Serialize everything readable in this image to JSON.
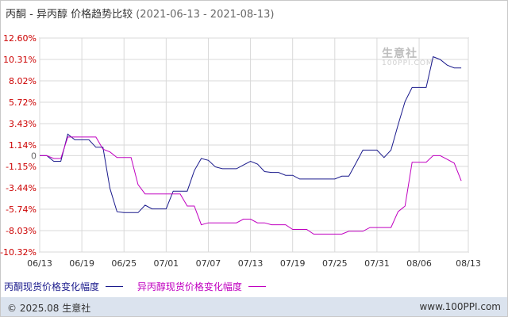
{
  "title": {
    "main": "丙酮 - 异丙醇 价格趋势比较",
    "range": "(2021-06-13 - 2021-08-13)"
  },
  "watermark": {
    "text": "生意社",
    "sub": "100PPI.COM"
  },
  "footer": {
    "left": "© 2025.08 生意社",
    "right": "www.100PPI.com"
  },
  "colors": {
    "series1": "#1a1a8c",
    "series2": "#c000c0",
    "grid": "#d9d9d9",
    "axis_label": "#cc0000"
  },
  "chart_data": {
    "type": "line",
    "xlabel": "",
    "ylabel": "",
    "ylim": [
      -10.32,
      12.6
    ],
    "yticks": [
      12.6,
      10.31,
      8.02,
      5.72,
      3.43,
      1.14,
      0,
      -1.15,
      -3.44,
      -5.74,
      -8.03,
      -10.32
    ],
    "ytick_labels": [
      "12.60%",
      "10.31%",
      "8.02%",
      "5.72%",
      "3.43%",
      "1.14%",
      "0",
      "-1.15%",
      "-3.44%",
      "-5.74%",
      "-8.03%",
      "-10.32%"
    ],
    "xticks": [
      "06/13",
      "06/19",
      "06/25",
      "07/01",
      "07/07",
      "07/13",
      "07/19",
      "07/25",
      "07/31",
      "08/06",
      "08/13"
    ],
    "xtick_days": [
      0,
      6,
      12,
      18,
      24,
      30,
      36,
      42,
      48,
      54,
      61
    ],
    "legend": "bottom-left",
    "grid": true,
    "series": [
      {
        "name": "丙酮现货价格变化幅度",
        "color": "#1a1a8c",
        "points": [
          [
            0,
            0
          ],
          [
            1,
            0
          ],
          [
            2,
            -0.6
          ],
          [
            3,
            -0.6
          ],
          [
            4,
            2.3
          ],
          [
            5,
            1.7
          ],
          [
            6,
            1.7
          ],
          [
            7,
            1.7
          ],
          [
            8,
            0.9
          ],
          [
            9,
            0.9
          ],
          [
            10,
            -3.5
          ],
          [
            11,
            -6.0
          ],
          [
            12,
            -6.1
          ],
          [
            13,
            -6.1
          ],
          [
            14,
            -6.1
          ],
          [
            15,
            -5.3
          ],
          [
            16,
            -5.7
          ],
          [
            17,
            -5.7
          ],
          [
            18,
            -5.7
          ],
          [
            19,
            -3.8
          ],
          [
            20,
            -3.8
          ],
          [
            21,
            -3.8
          ],
          [
            22,
            -1.6
          ],
          [
            23,
            -0.3
          ],
          [
            24,
            -0.5
          ],
          [
            25,
            -1.2
          ],
          [
            26,
            -1.4
          ],
          [
            27,
            -1.4
          ],
          [
            28,
            -1.4
          ],
          [
            29,
            -1.0
          ],
          [
            30,
            -0.6
          ],
          [
            31,
            -0.9
          ],
          [
            32,
            -1.7
          ],
          [
            33,
            -1.8
          ],
          [
            34,
            -1.8
          ],
          [
            35,
            -2.1
          ],
          [
            36,
            -2.1
          ],
          [
            37,
            -2.5
          ],
          [
            38,
            -2.5
          ],
          [
            39,
            -2.5
          ],
          [
            40,
            -2.5
          ],
          [
            41,
            -2.5
          ],
          [
            42,
            -2.5
          ],
          [
            43,
            -2.2
          ],
          [
            44,
            -2.2
          ],
          [
            45,
            -0.8
          ],
          [
            46,
            0.6
          ],
          [
            47,
            0.6
          ],
          [
            48,
            0.6
          ],
          [
            49,
            -0.2
          ],
          [
            50,
            0.6
          ],
          [
            51,
            3.3
          ],
          [
            52,
            5.8
          ],
          [
            53,
            7.3
          ],
          [
            54,
            7.3
          ],
          [
            55,
            7.3
          ],
          [
            56,
            10.6
          ],
          [
            57,
            10.3
          ],
          [
            58,
            9.7
          ],
          [
            59,
            9.4
          ],
          [
            60,
            9.4
          ]
        ]
      },
      {
        "name": "异丙醇现货价格变化幅度",
        "color": "#c000c0",
        "points": [
          [
            0,
            0
          ],
          [
            1,
            0
          ],
          [
            2,
            -0.3
          ],
          [
            3,
            -0.3
          ],
          [
            4,
            2.0
          ],
          [
            5,
            2.0
          ],
          [
            6,
            2.0
          ],
          [
            7,
            2.0
          ],
          [
            8,
            2.0
          ],
          [
            9,
            0.7
          ],
          [
            10,
            0.4
          ],
          [
            11,
            -0.2
          ],
          [
            12,
            -0.2
          ],
          [
            13,
            -0.2
          ],
          [
            14,
            -3.1
          ],
          [
            15,
            -4.1
          ],
          [
            16,
            -4.1
          ],
          [
            17,
            -4.1
          ],
          [
            18,
            -4.1
          ],
          [
            19,
            -4.1
          ],
          [
            20,
            -4.1
          ],
          [
            21,
            -5.4
          ],
          [
            22,
            -5.4
          ],
          [
            23,
            -7.4
          ],
          [
            24,
            -7.2
          ],
          [
            25,
            -7.2
          ],
          [
            26,
            -7.2
          ],
          [
            27,
            -7.2
          ],
          [
            28,
            -7.2
          ],
          [
            29,
            -6.8
          ],
          [
            30,
            -6.8
          ],
          [
            31,
            -7.2
          ],
          [
            32,
            -7.2
          ],
          [
            33,
            -7.4
          ],
          [
            34,
            -7.4
          ],
          [
            35,
            -7.4
          ],
          [
            36,
            -7.9
          ],
          [
            37,
            -7.9
          ],
          [
            38,
            -7.9
          ],
          [
            39,
            -8.4
          ],
          [
            40,
            -8.4
          ],
          [
            41,
            -8.4
          ],
          [
            42,
            -8.4
          ],
          [
            43,
            -8.4
          ],
          [
            44,
            -8.1
          ],
          [
            45,
            -8.1
          ],
          [
            46,
            -8.1
          ],
          [
            47,
            -7.7
          ],
          [
            48,
            -7.7
          ],
          [
            49,
            -7.7
          ],
          [
            50,
            -7.7
          ],
          [
            51,
            -6.0
          ],
          [
            52,
            -5.4
          ],
          [
            53,
            -0.7
          ],
          [
            54,
            -0.7
          ],
          [
            55,
            -0.7
          ],
          [
            56,
            0
          ],
          [
            57,
            0
          ],
          [
            58,
            -0.4
          ],
          [
            59,
            -0.8
          ],
          [
            60,
            -2.7
          ]
        ]
      }
    ]
  }
}
